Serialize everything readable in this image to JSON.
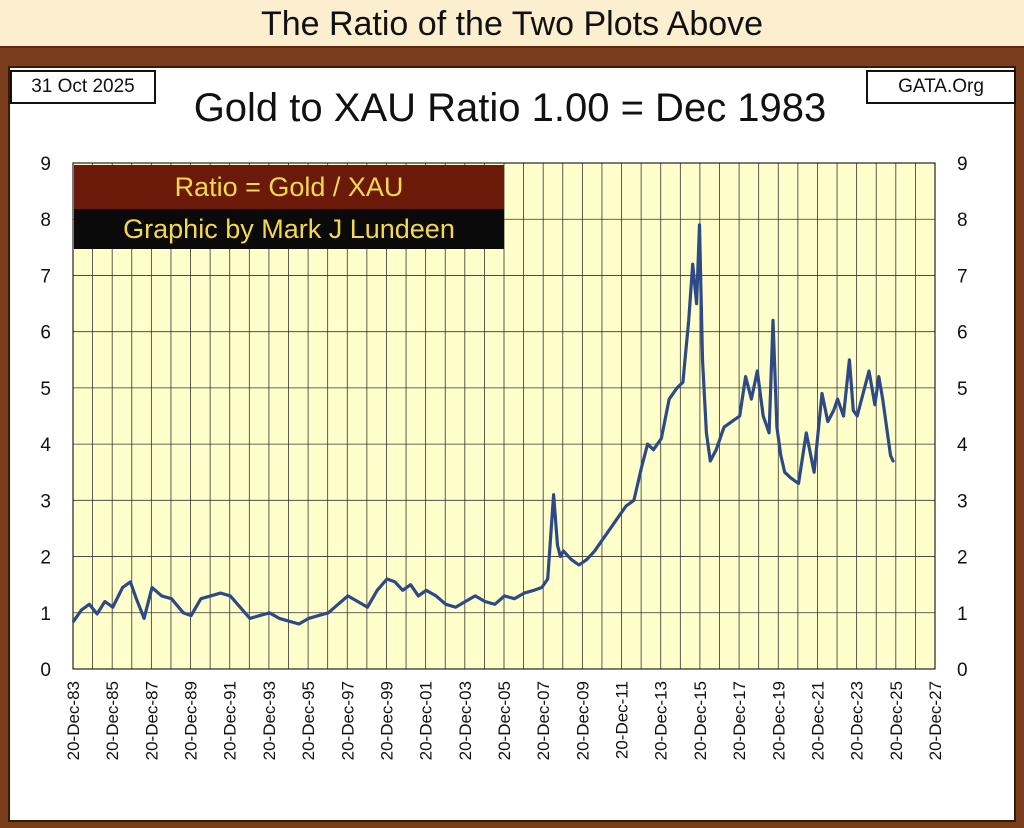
{
  "header": {
    "banner": "The Ratio of the Two Plots Above"
  },
  "panel": {
    "date": "31 Oct 2025",
    "source": "GATA.Org"
  },
  "chart_data": {
    "type": "line",
    "title": "Gold to XAU Ratio 1.00 = Dec 1983",
    "legend": {
      "formula": "Ratio = Gold / XAU",
      "credit": "Graphic by Mark J Lundeen",
      "formula_bg": "#6b1a0a",
      "credit_bg": "#0a0a0a",
      "text_color": "#f5d94a"
    },
    "colors": {
      "plot_bg": "#ffffcc",
      "line": "#2e4a86",
      "grid": "#333333"
    },
    "xlim": [
      1983.97,
      2027.97
    ],
    "ylim": [
      0,
      9
    ],
    "y_ticks": [
      0,
      1,
      2,
      3,
      4,
      5,
      6,
      7,
      8,
      9
    ],
    "x_ticks": [
      1983.97,
      1985.97,
      1987.97,
      1989.97,
      1991.97,
      1993.97,
      1995.97,
      1997.97,
      1999.97,
      2001.97,
      2003.97,
      2005.97,
      2007.97,
      2009.97,
      2011.97,
      2013.97,
      2015.97,
      2017.97,
      2019.97,
      2021.97,
      2023.97,
      2025.97,
      2027.97
    ],
    "x_tick_labels": [
      "20-Dec-83",
      "20-Dec-85",
      "20-Dec-87",
      "20-Dec-89",
      "20-Dec-91",
      "20-Dec-93",
      "20-Dec-95",
      "20-Dec-97",
      "20-Dec-99",
      "20-Dec-01",
      "20-Dec-03",
      "20-Dec-05",
      "20-Dec-07",
      "20-Dec-09",
      "20-Dec-11",
      "20-Dec-13",
      "20-Dec-15",
      "20-Dec-17",
      "20-Dec-19",
      "20-Dec-21",
      "20-Dec-23",
      "20-Dec-25",
      "20-Dec-27"
    ],
    "series": [
      {
        "name": "Gold / XAU",
        "x": [
          1984.0,
          1984.4,
          1984.8,
          1985.2,
          1985.6,
          1986.0,
          1986.5,
          1986.9,
          1987.2,
          1987.6,
          1988.0,
          1988.5,
          1989.0,
          1989.6,
          1990.0,
          1990.5,
          1991.0,
          1991.5,
          1992.0,
          1992.5,
          1993.0,
          1993.5,
          1994.0,
          1994.5,
          1995.0,
          1995.5,
          1996.0,
          1996.5,
          1997.0,
          1997.5,
          1998.0,
          1998.5,
          1999.0,
          1999.5,
          2000.0,
          2000.4,
          2000.8,
          2001.2,
          2001.6,
          2002.0,
          2002.5,
          2003.0,
          2003.5,
          2004.0,
          2004.5,
          2005.0,
          2005.5,
          2006.0,
          2006.5,
          2007.0,
          2007.5,
          2007.9,
          2008.2,
          2008.5,
          2008.7,
          2008.85,
          2009.0,
          2009.4,
          2009.8,
          2010.2,
          2010.6,
          2011.0,
          2011.4,
          2011.8,
          2012.2,
          2012.6,
          2013.0,
          2013.3,
          2013.6,
          2014.0,
          2014.4,
          2014.8,
          2015.1,
          2015.4,
          2015.6,
          2015.8,
          2015.95,
          2016.1,
          2016.3,
          2016.5,
          2016.8,
          2017.2,
          2017.6,
          2018.0,
          2018.3,
          2018.6,
          2018.9,
          2019.2,
          2019.5,
          2019.7,
          2019.9,
          2020.1,
          2020.3,
          2020.6,
          2021.0,
          2021.4,
          2021.8,
          2022.2,
          2022.5,
          2022.8,
          2023.0,
          2023.3,
          2023.6,
          2023.8,
          2024.0,
          2024.3,
          2024.6,
          2024.9,
          2025.1,
          2025.3,
          2025.5,
          2025.7,
          2025.83
        ],
        "y": [
          0.85,
          1.05,
          1.15,
          0.98,
          1.2,
          1.1,
          1.45,
          1.55,
          1.25,
          0.9,
          1.45,
          1.3,
          1.25,
          1.0,
          0.95,
          1.25,
          1.3,
          1.35,
          1.3,
          1.1,
          0.9,
          0.95,
          1.0,
          0.9,
          0.85,
          0.8,
          0.9,
          0.95,
          1.0,
          1.15,
          1.3,
          1.2,
          1.1,
          1.4,
          1.6,
          1.55,
          1.4,
          1.5,
          1.3,
          1.4,
          1.3,
          1.15,
          1.1,
          1.2,
          1.3,
          1.2,
          1.15,
          1.3,
          1.25,
          1.35,
          1.4,
          1.45,
          1.6,
          3.1,
          2.2,
          2.0,
          2.1,
          1.95,
          1.85,
          1.95,
          2.1,
          2.3,
          2.5,
          2.7,
          2.9,
          3.0,
          3.6,
          4.0,
          3.9,
          4.1,
          4.8,
          5.0,
          5.1,
          6.2,
          7.2,
          6.5,
          7.9,
          5.5,
          4.2,
          3.7,
          3.9,
          4.3,
          4.4,
          4.5,
          5.2,
          4.8,
          5.3,
          4.5,
          4.2,
          6.2,
          4.3,
          3.8,
          3.5,
          3.4,
          3.3,
          4.2,
          3.5,
          4.9,
          4.4,
          4.6,
          4.8,
          4.5,
          5.5,
          4.6,
          4.5,
          4.9,
          5.3,
          4.7,
          5.2,
          4.8,
          4.3,
          3.8,
          3.7
        ]
      }
    ]
  }
}
